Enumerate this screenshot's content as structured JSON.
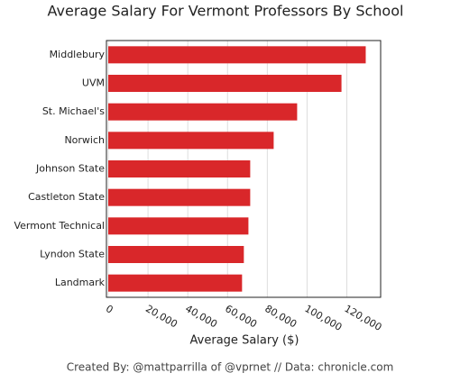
{
  "chart_data": {
    "type": "bar",
    "orientation": "horizontal",
    "title": "Average Salary For Vermont Professors By School",
    "x_label": "Average Salary ($)",
    "footer": "Created By: @mattparrilla of @vprnet // Data: chronicle.com",
    "categories": [
      "Middlebury",
      "UVM",
      "St. Michael's",
      "Norwich",
      "Johnson State",
      "Castleton State",
      "Vermont Technical",
      "Lyndon State",
      "Landmark"
    ],
    "values": [
      129500,
      117300,
      95000,
      83200,
      71400,
      71400,
      70500,
      68200,
      67300
    ],
    "color": "#d9272a",
    "xlim": [
      0,
      137000
    ],
    "xticks": [
      0,
      {
        "value": 20000,
        "label": "20,000"
      },
      {
        "value": 40000,
        "label": "40,000"
      },
      {
        "value": 60000,
        "label": "60,000"
      },
      {
        "value": 80000,
        "label": "80,000"
      },
      {
        "value": 100000,
        "label": "100,000"
      },
      {
        "value": 120000,
        "label": "120,000"
      }
    ],
    "grid": true
  }
}
